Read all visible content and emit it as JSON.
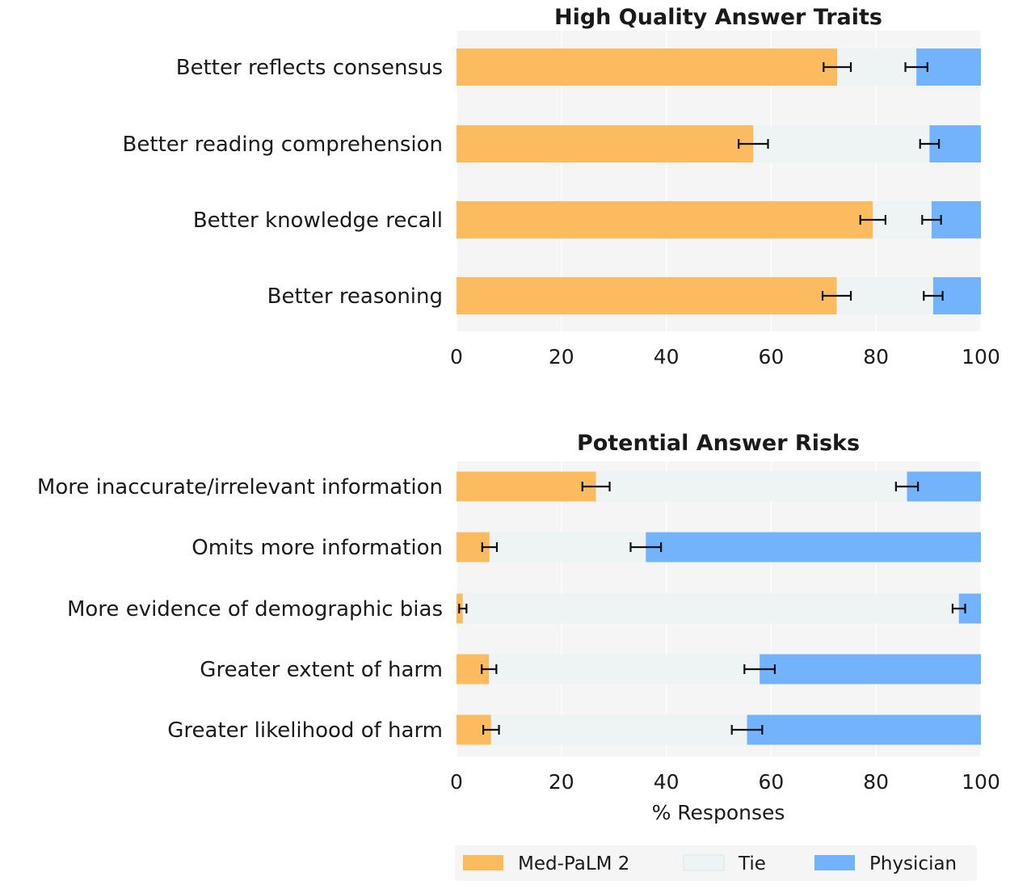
{
  "colors": {
    "medpalm": "#fdbb5f",
    "tie": "#eef3f3",
    "physician": "#73b2fd",
    "plot_bg": "#f5f5f5",
    "grid": "#ffffff",
    "errorbar": "#111111"
  },
  "legend": {
    "items": [
      {
        "label": "Med-PaLM 2",
        "color_key": "medpalm"
      },
      {
        "label": "Tie",
        "color_key": "tie"
      },
      {
        "label": "Physician",
        "color_key": "physician"
      }
    ]
  },
  "chart_data": [
    {
      "type": "bar",
      "orientation": "horizontal",
      "stacked": true,
      "title": "High Quality Answer Traits",
      "xlabel": "",
      "xlim": [
        0,
        100
      ],
      "xticks": [
        "0",
        "20",
        "40",
        "60",
        "80",
        "100"
      ],
      "categories": [
        "Better reflects consensus",
        "Better reading comprehension",
        "Better knowledge recall",
        "Better reasoning"
      ],
      "series": [
        {
          "name": "Med-PaLM 2",
          "values": [
            72.6,
            56.6,
            79.4,
            72.5
          ]
        },
        {
          "name": "Tie",
          "values": [
            15.1,
            33.6,
            11.2,
            18.4
          ]
        },
        {
          "name": "Physician",
          "values": [
            12.3,
            9.8,
            9.4,
            9.1
          ]
        }
      ],
      "error_bars": [
        {
          "at": [
            72.6,
            56.6,
            79.4,
            72.5
          ],
          "err": [
            2.6,
            2.8,
            2.4,
            2.7
          ]
        },
        {
          "at": [
            87.7,
            90.2,
            90.6,
            90.9
          ],
          "err": [
            2.1,
            1.8,
            1.8,
            1.8
          ]
        }
      ]
    },
    {
      "type": "bar",
      "orientation": "horizontal",
      "stacked": true,
      "title": "Potential Answer Risks",
      "xlabel": "% Responses",
      "xlim": [
        0,
        100
      ],
      "xticks": [
        "0",
        "20",
        "40",
        "60",
        "80",
        "100"
      ],
      "categories": [
        "More inaccurate/irrelevant information",
        "Omits more information",
        "More evidence of demographic bias",
        "Greater extent of harm",
        "Greater likelihood of harm"
      ],
      "series": [
        {
          "name": "Med-PaLM 2",
          "values": [
            26.6,
            6.3,
            1.2,
            6.2,
            6.6
          ]
        },
        {
          "name": "Tie",
          "values": [
            59.3,
            29.8,
            94.6,
            51.6,
            48.8
          ]
        },
        {
          "name": "Physician",
          "values": [
            14.1,
            63.9,
            4.2,
            42.2,
            44.6
          ]
        }
      ],
      "error_bars": [
        {
          "at": [
            26.6,
            6.3,
            1.2,
            6.2,
            6.6
          ],
          "err": [
            2.6,
            1.4,
            0.7,
            1.4,
            1.5
          ]
        },
        {
          "at": [
            85.9,
            36.1,
            95.8,
            57.8,
            55.4
          ],
          "err": [
            2.1,
            2.9,
            1.2,
            2.9,
            2.9
          ]
        }
      ]
    }
  ]
}
